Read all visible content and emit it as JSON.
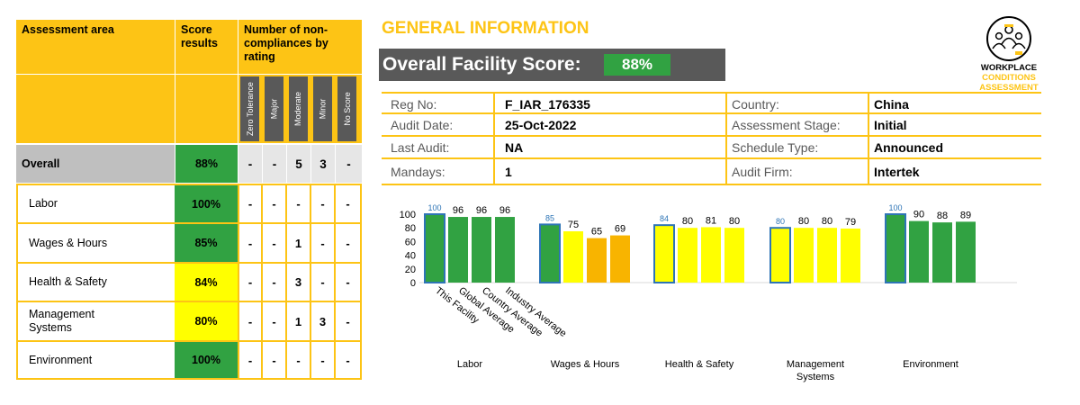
{
  "table": {
    "header_area": "Assessment area",
    "header_score": "Score results",
    "header_nc": "Number of non-compliances by rating",
    "ratings": [
      "Zero Tolerance",
      "Major",
      "Moderate",
      "Minor",
      "No Score"
    ],
    "overall": {
      "label": "Overall",
      "score": "88%",
      "counts": [
        "-",
        "-",
        "5",
        "3",
        "-"
      ]
    },
    "rows": [
      {
        "label": "Labor",
        "score": "100%",
        "counts": [
          "-",
          "-",
          "-",
          "-",
          "-"
        ]
      },
      {
        "label": "Wages & Hours",
        "score": "85%",
        "counts": [
          "-",
          "-",
          "1",
          "-",
          "-"
        ]
      },
      {
        "label": "Health & Safety",
        "score": "84%",
        "counts": [
          "-",
          "-",
          "3",
          "-",
          "-"
        ]
      },
      {
        "label": "Management Systems",
        "score": "80%",
        "counts": [
          "-",
          "-",
          "1",
          "3",
          "-"
        ]
      },
      {
        "label": "Environment",
        "score": "100%",
        "counts": [
          "-",
          "-",
          "-",
          "-",
          "-"
        ]
      }
    ]
  },
  "general": {
    "title": "GENERAL INFORMATION",
    "score_label": "Overall Facility Score:",
    "score_value": "88%",
    "fields": [
      {
        "k1": "Reg No:",
        "v1": "F_IAR_176335",
        "k2": "Country:",
        "v2": "China"
      },
      {
        "k1": "Audit Date:",
        "v1": "25-Oct-2022",
        "k2": "Assessment Stage:",
        "v2": "Initial"
      },
      {
        "k1": "Last Audit:",
        "v1": "NA",
        "k2": "Schedule Type:",
        "v2": "Announced"
      },
      {
        "k1": "Mandays:",
        "v1": "1",
        "k2": "Audit Firm:",
        "v2": "Intertek"
      }
    ]
  },
  "logo": {
    "line1": "WORKPLACE",
    "line2": "CONDITIONS",
    "line3": "ASSESSMENT",
    "icon": "people-group-icon"
  },
  "colors": {
    "yellow": "#fdc415",
    "green": "#31a242",
    "bright_yellow": "#ffff00",
    "orange": "#f8b400",
    "dark_grey": "#595959",
    "light_grey": "#bfbfbf",
    "blue_outline": "#2e75b6"
  },
  "chart_data": {
    "type": "bar",
    "categories": [
      "Labor",
      "Wages & Hours",
      "Health & Safety",
      "Management Systems",
      "Environment"
    ],
    "series": [
      {
        "name": "This Facility",
        "values": [
          100,
          85,
          84,
          80,
          100
        ]
      },
      {
        "name": "Global Average",
        "values": [
          96,
          75,
          80,
          80,
          90
        ]
      },
      {
        "name": "Country Average",
        "values": [
          96,
          65,
          81,
          80,
          88
        ]
      },
      {
        "name": "Industry Average",
        "values": [
          96,
          69,
          80,
          79,
          89
        ]
      }
    ],
    "bar_colors": [
      [
        "#31a242",
        "#31a242",
        "#31a242",
        "#31a242"
      ],
      [
        "#31a242",
        "#ffff00",
        "#f8b400",
        "#f8b400"
      ],
      [
        "#ffff00",
        "#ffff00",
        "#ffff00",
        "#ffff00"
      ],
      [
        "#ffff00",
        "#ffff00",
        "#ffff00",
        "#ffff00"
      ],
      [
        "#31a242",
        "#31a242",
        "#31a242",
        "#31a242"
      ]
    ],
    "y_ticks": [
      0,
      20,
      40,
      60,
      80,
      100
    ],
    "ylim": [
      0,
      100
    ],
    "title": "",
    "xlabel": "",
    "ylabel": ""
  }
}
